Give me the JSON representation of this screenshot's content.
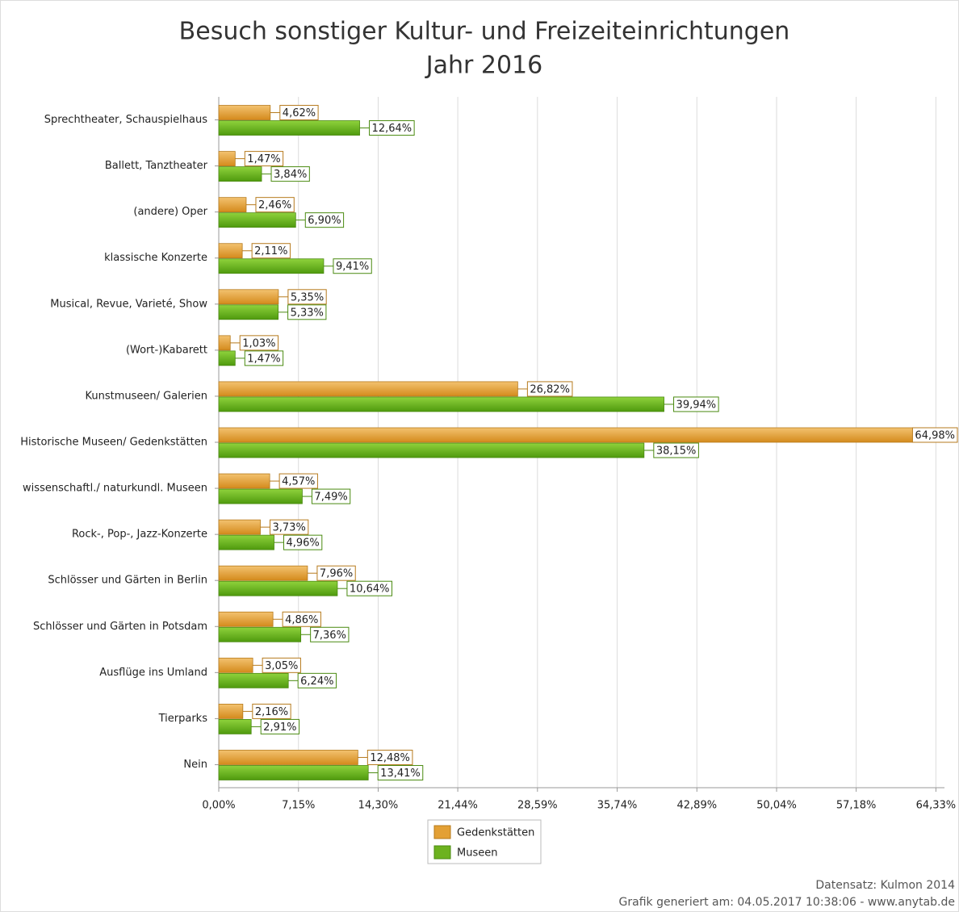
{
  "chart_data": {
    "type": "bar",
    "orientation": "horizontal",
    "title": "Besuch sonstiger Kultur- und Freizeiteinrichtungen",
    "subtitle": "Jahr 2016",
    "categories": [
      "Sprechtheater, Schauspielhaus",
      "Ballett, Tanztheater",
      "(andere) Oper",
      "klassische Konzerte",
      "Musical, Revue, Varieté, Show",
      "(Wort-)Kabarett",
      "Kunstmuseen/ Galerien",
      "Historische Museen/ Gedenkstätten",
      "wissenschaftl./ naturkundl. Museen",
      "Rock-, Pop-, Jazz-Konzerte",
      "Schlösser und Gärten in Berlin",
      "Schlösser und Gärten in Potsdam",
      "Ausflüge ins Umland",
      "Tierparks",
      "Nein"
    ],
    "series": [
      {
        "name": "Gedenkstätten",
        "color": "#e3a035",
        "values": [
          4.62,
          1.47,
          2.46,
          2.11,
          5.35,
          1.03,
          26.82,
          64.98,
          4.57,
          3.73,
          7.96,
          4.86,
          3.05,
          2.16,
          12.48
        ],
        "value_labels": [
          "4,62%",
          "1,47%",
          "2,46%",
          "2,11%",
          "5,35%",
          "1,03%",
          "26,82%",
          "64,98%",
          "4,57%",
          "3,73%",
          "7,96%",
          "4,86%",
          "3,05%",
          "2,16%",
          "12,48%"
        ]
      },
      {
        "name": "Museen",
        "color": "#6db21f",
        "values": [
          12.64,
          3.84,
          6.9,
          9.41,
          5.33,
          1.47,
          39.94,
          38.15,
          7.49,
          4.96,
          10.64,
          7.36,
          6.24,
          2.91,
          13.41
        ],
        "value_labels": [
          "12,64%",
          "3,84%",
          "6,90%",
          "9,41%",
          "5,33%",
          "1,47%",
          "39,94%",
          "38,15%",
          "7,49%",
          "4,96%",
          "10,64%",
          "7,36%",
          "6,24%",
          "2,91%",
          "13,41%"
        ]
      }
    ],
    "xlim": [
      0,
      65.1
    ],
    "xticks": [
      {
        "value": 0,
        "label": "0,00%"
      },
      {
        "value": 7.15,
        "label": "7,15%"
      },
      {
        "value": 14.3,
        "label": "14,30%"
      },
      {
        "value": 21.44,
        "label": "21,44%"
      },
      {
        "value": 28.59,
        "label": "28,59%"
      },
      {
        "value": 35.74,
        "label": "35,74%"
      },
      {
        "value": 42.89,
        "label": "42,89%"
      },
      {
        "value": 50.04,
        "label": "50,04%"
      },
      {
        "value": 57.18,
        "label": "57,18%"
      },
      {
        "value": 64.33,
        "label": "64,33%"
      }
    ],
    "grid": true,
    "legend": "bottom",
    "source": "Datensatz: Kulmon 2014",
    "footer": "Grafik generiert am: 04.05.2017 10:38:06 - www.anytab.de"
  }
}
